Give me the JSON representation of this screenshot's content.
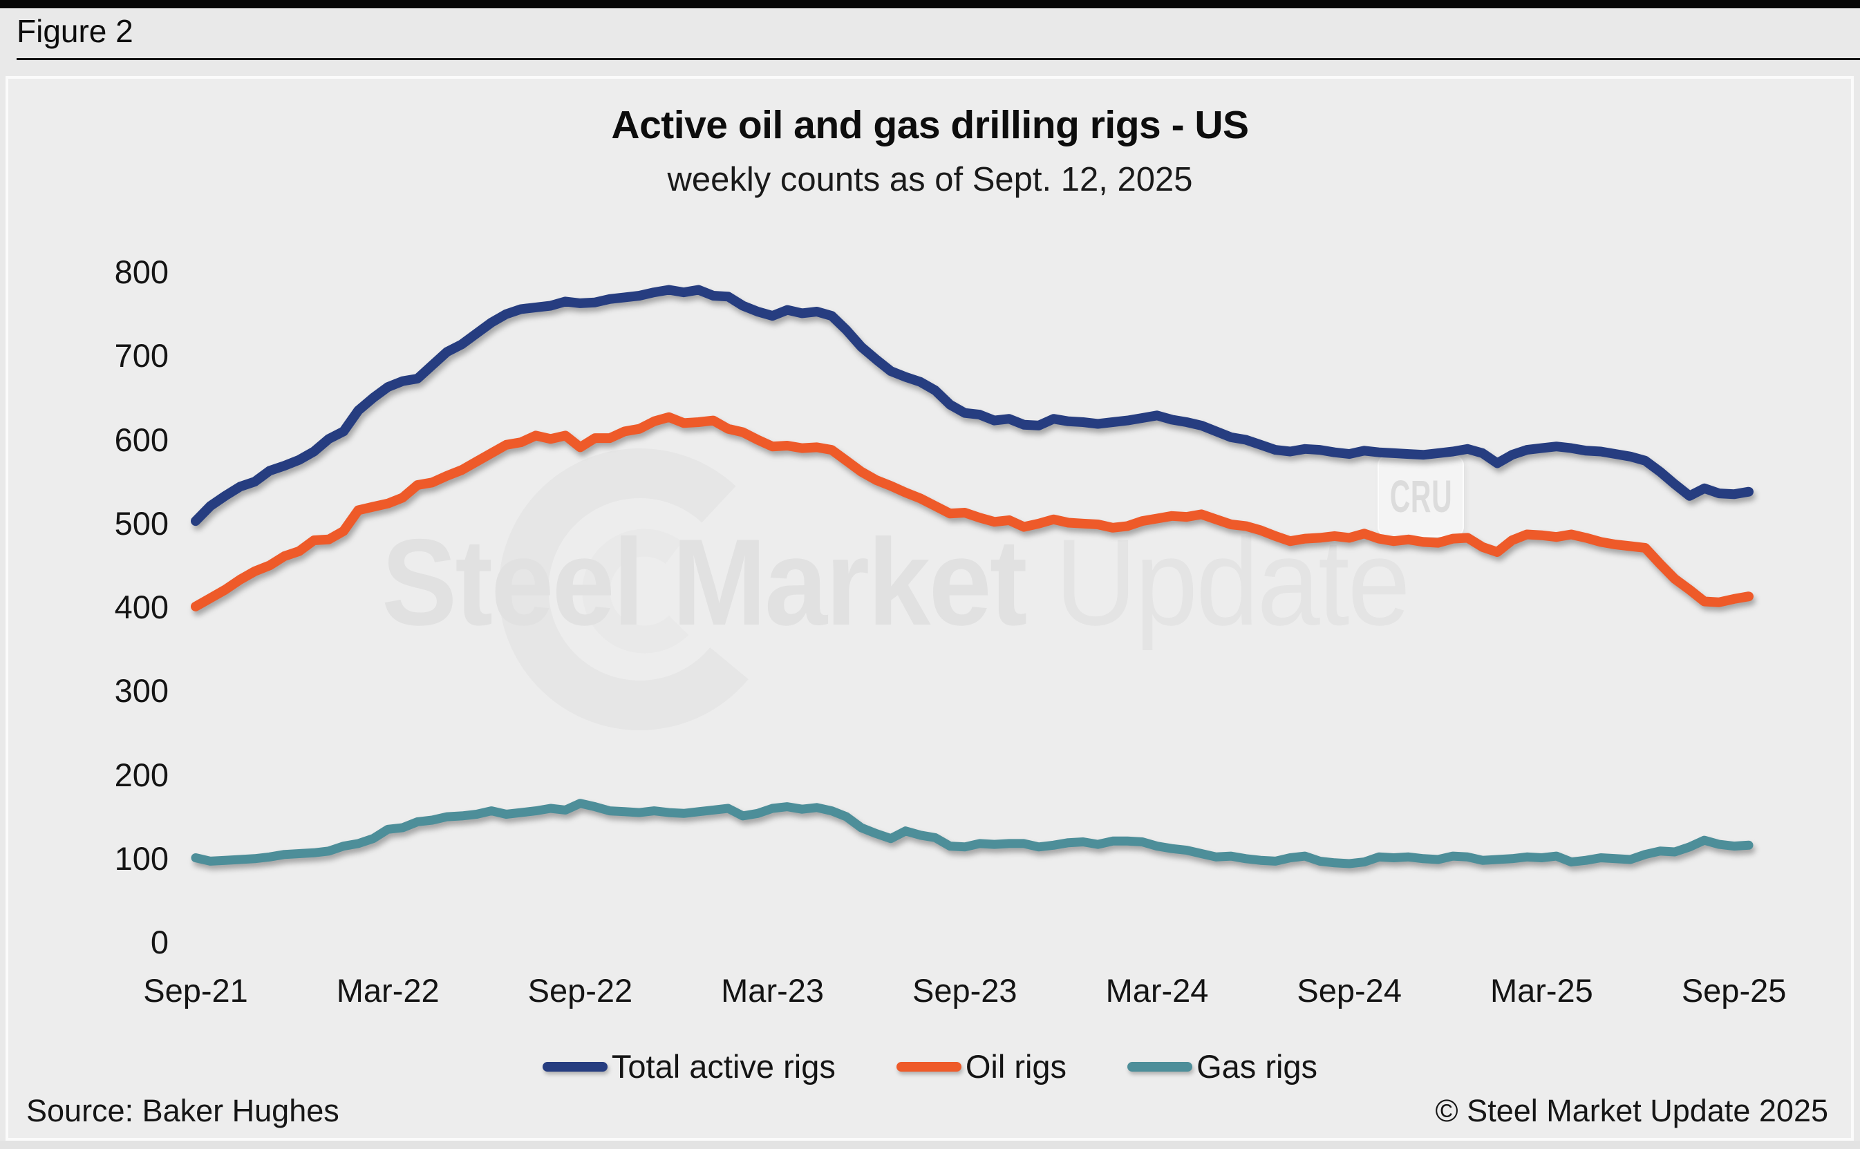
{
  "figure_label": "Figure 2",
  "watermark": {
    "brand_bold": "Steel Market",
    "brand_light": "Update",
    "cru": "CRU"
  },
  "footer": {
    "source": "Source: Baker Hughes",
    "copyright": "© Steel Market Update 2025"
  },
  "chart_data": {
    "type": "line",
    "title": "Active oil and gas drilling rigs - US",
    "subtitle": "weekly counts as of Sept. 12, 2025",
    "xlabel": "",
    "ylabel": "",
    "ylim": [
      0,
      800
    ],
    "y_ticks": [
      800,
      700,
      600,
      500,
      400,
      300,
      200,
      100,
      0
    ],
    "x_tick_labels": [
      "Sep-21",
      "Mar-22",
      "Sep-22",
      "Mar-23",
      "Sep-23",
      "Mar-24",
      "Sep-24",
      "Mar-25",
      "Sep-25"
    ],
    "grid": false,
    "legend_position": "bottom",
    "series": [
      {
        "name": "Total active rigs",
        "color": "#263d80",
        "values": [
          503,
          521,
          533,
          544,
          550,
          563,
          569,
          576,
          586,
          601,
          610,
          635,
          650,
          663,
          670,
          673,
          689,
          705,
          714,
          727,
          740,
          750,
          756,
          758,
          760,
          765,
          763,
          764,
          768,
          770,
          772,
          776,
          779,
          776,
          779,
          772,
          771,
          760,
          753,
          748,
          755,
          751,
          753,
          748,
          731,
          711,
          696,
          682,
          675,
          669,
          659,
          642,
          632,
          630,
          623,
          625,
          618,
          617,
          625,
          622,
          621,
          619,
          621,
          623,
          626,
          629,
          624,
          621,
          617,
          610,
          603,
          600,
          594,
          588,
          586,
          589,
          588,
          585,
          583,
          587,
          585,
          584,
          583,
          582,
          584,
          586,
          589,
          584,
          572,
          582,
          588,
          590,
          592,
          590,
          587,
          586,
          583,
          580,
          575,
          562,
          547,
          533,
          542,
          536,
          535,
          538
        ]
      },
      {
        "name": "Oil rigs",
        "color": "#ee5a29",
        "values": [
          401,
          411,
          421,
          433,
          443,
          450,
          461,
          467,
          480,
          481,
          491,
          516,
          520,
          524,
          531,
          546,
          549,
          557,
          564,
          574,
          584,
          594,
          597,
          605,
          601,
          605,
          591,
          602,
          602,
          610,
          613,
          622,
          627,
          620,
          621,
          623,
          613,
          609,
          600,
          592,
          593,
          590,
          591,
          588,
          575,
          562,
          552,
          545,
          537,
          530,
          521,
          512,
          513,
          507,
          502,
          504,
          496,
          500,
          505,
          501,
          500,
          499,
          495,
          497,
          503,
          506,
          509,
          508,
          511,
          505,
          499,
          497,
          492,
          485,
          479,
          482,
          483,
          485,
          483,
          488,
          482,
          479,
          481,
          478,
          477,
          482,
          483,
          472,
          466,
          480,
          487,
          486,
          484,
          487,
          483,
          478,
          475,
          473,
          471,
          452,
          434,
          421,
          407,
          406,
          410,
          413
        ]
      },
      {
        "name": "Gas rigs",
        "color": "#4d8e99",
        "values": [
          101,
          97,
          98,
          99,
          100,
          102,
          105,
          106,
          107,
          109,
          115,
          118,
          124,
          135,
          137,
          144,
          146,
          150,
          151,
          153,
          157,
          153,
          155,
          157,
          160,
          158,
          166,
          162,
          157,
          156,
          155,
          157,
          155,
          154,
          156,
          158,
          160,
          151,
          154,
          160,
          162,
          159,
          161,
          157,
          150,
          137,
          130,
          124,
          133,
          128,
          125,
          115,
          114,
          118,
          117,
          118,
          118,
          114,
          116,
          119,
          120,
          117,
          121,
          121,
          120,
          115,
          112,
          110,
          106,
          102,
          103,
          100,
          98,
          97,
          101,
          103,
          97,
          95,
          94,
          96,
          102,
          101,
          102,
          100,
          99,
          103,
          102,
          98,
          99,
          100,
          102,
          101,
          103,
          96,
          98,
          101,
          100,
          99,
          105,
          109,
          108,
          114,
          122,
          117,
          115,
          116
        ]
      }
    ]
  }
}
